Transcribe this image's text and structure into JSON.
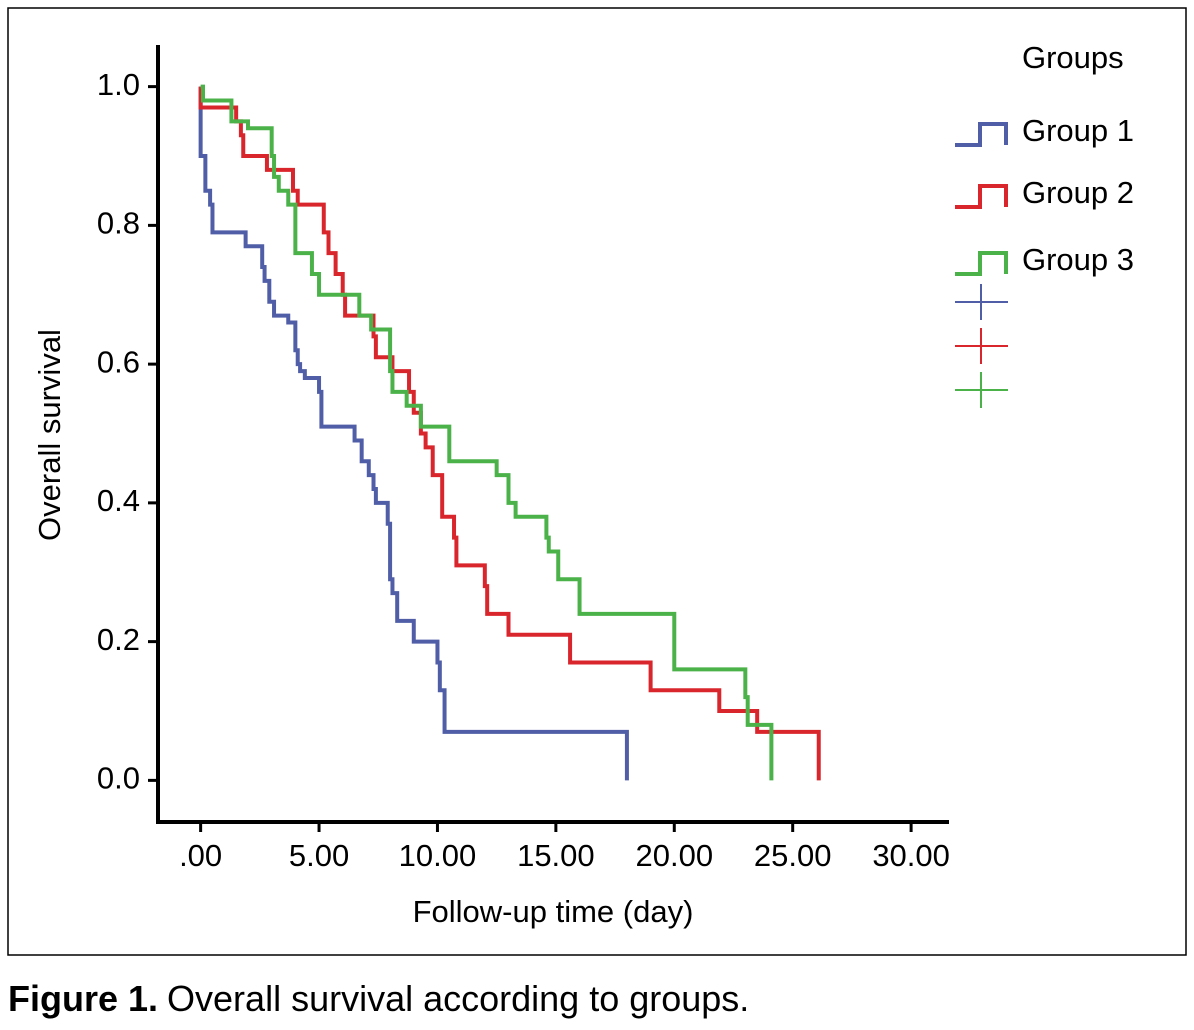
{
  "chart_data": {
    "type": "step",
    "xlabel": "Follow-up time (day)",
    "ylabel": "Overall survival",
    "legend_title": "Groups",
    "legend": "upper right",
    "xlim": [
      -1.8,
      31.6
    ],
    "ylim": [
      -0.06,
      1.06
    ],
    "xticks": [
      {
        "value": 0,
        "label": ".00"
      },
      {
        "value": 5,
        "label": "5.00"
      },
      {
        "value": 10,
        "label": "10.00"
      },
      {
        "value": 15,
        "label": "15.00"
      },
      {
        "value": 20,
        "label": "20.00"
      },
      {
        "value": 25,
        "label": "25.00"
      },
      {
        "value": 30,
        "label": "30.00"
      }
    ],
    "yticks": [
      {
        "value": 0,
        "label": "0.0"
      },
      0.2,
      0.4,
      0.6,
      0.8,
      {
        "value": 1,
        "label": "1.0"
      }
    ],
    "series": [
      {
        "name": "Group 1",
        "color": "#4f5ea6",
        "x": [
          0,
          0,
          0.2,
          0.4,
          0.5,
          1.9,
          2.6,
          2.7,
          2.9,
          3.1,
          3.7,
          4.0,
          4.1,
          4.2,
          4.4,
          5.0,
          5.1,
          6.5,
          6.8,
          7.1,
          7.3,
          7.4,
          7.9,
          8.0,
          8.1,
          8.3,
          9.0,
          10.0,
          10.1,
          10.3,
          18.0,
          18.0
        ],
        "values": [
          1.0,
          0.9,
          0.85,
          0.83,
          0.79,
          0.77,
          0.74,
          0.72,
          0.69,
          0.67,
          0.66,
          0.62,
          0.6,
          0.59,
          0.58,
          0.56,
          0.51,
          0.49,
          0.46,
          0.44,
          0.42,
          0.4,
          0.37,
          0.29,
          0.27,
          0.23,
          0.2,
          0.17,
          0.13,
          0.07,
          0.07,
          0.0
        ]
      },
      {
        "name": "Group 2",
        "color": "#d9262d",
        "x": [
          0,
          0,
          1.5,
          1.7,
          1.8,
          2.8,
          3.9,
          4.1,
          5.2,
          5.4,
          5.7,
          6.0,
          6.1,
          7.3,
          7.4,
          8.1,
          8.8,
          9.0,
          9.3,
          9.5,
          9.8,
          10.2,
          10.7,
          10.8,
          12.0,
          12.1,
          13.0,
          15.6,
          19.0,
          21.9,
          23.5,
          26.1,
          26.1
        ],
        "values": [
          1.0,
          0.97,
          0.95,
          0.93,
          0.9,
          0.88,
          0.85,
          0.83,
          0.79,
          0.76,
          0.73,
          0.7,
          0.67,
          0.64,
          0.61,
          0.59,
          0.56,
          0.53,
          0.5,
          0.48,
          0.44,
          0.38,
          0.35,
          0.31,
          0.28,
          0.24,
          0.21,
          0.17,
          0.13,
          0.1,
          0.07,
          0.07,
          0.0
        ]
      },
      {
        "name": "Group 3",
        "color": "#4bb24a",
        "x": [
          0,
          0.1,
          1.3,
          2.0,
          3.0,
          3.1,
          3.3,
          3.7,
          4.0,
          4.7,
          5.0,
          6.7,
          7.2,
          8.0,
          8.1,
          8.7,
          9.3,
          10.5,
          12.5,
          13.0,
          13.3,
          14.6,
          14.7,
          15.1,
          16.0,
          20.0,
          23.0,
          23.1,
          24.1,
          24.1
        ],
        "values": [
          1.0,
          0.98,
          0.95,
          0.94,
          0.9,
          0.87,
          0.85,
          0.83,
          0.76,
          0.73,
          0.7,
          0.67,
          0.65,
          0.59,
          0.56,
          0.54,
          0.51,
          0.46,
          0.44,
          0.4,
          0.38,
          0.35,
          0.33,
          0.29,
          0.24,
          0.16,
          0.12,
          0.08,
          0.08,
          0.0
        ]
      }
    ]
  },
  "caption": {
    "label": "Figure 1.",
    "text": "Overall survival according to groups."
  }
}
